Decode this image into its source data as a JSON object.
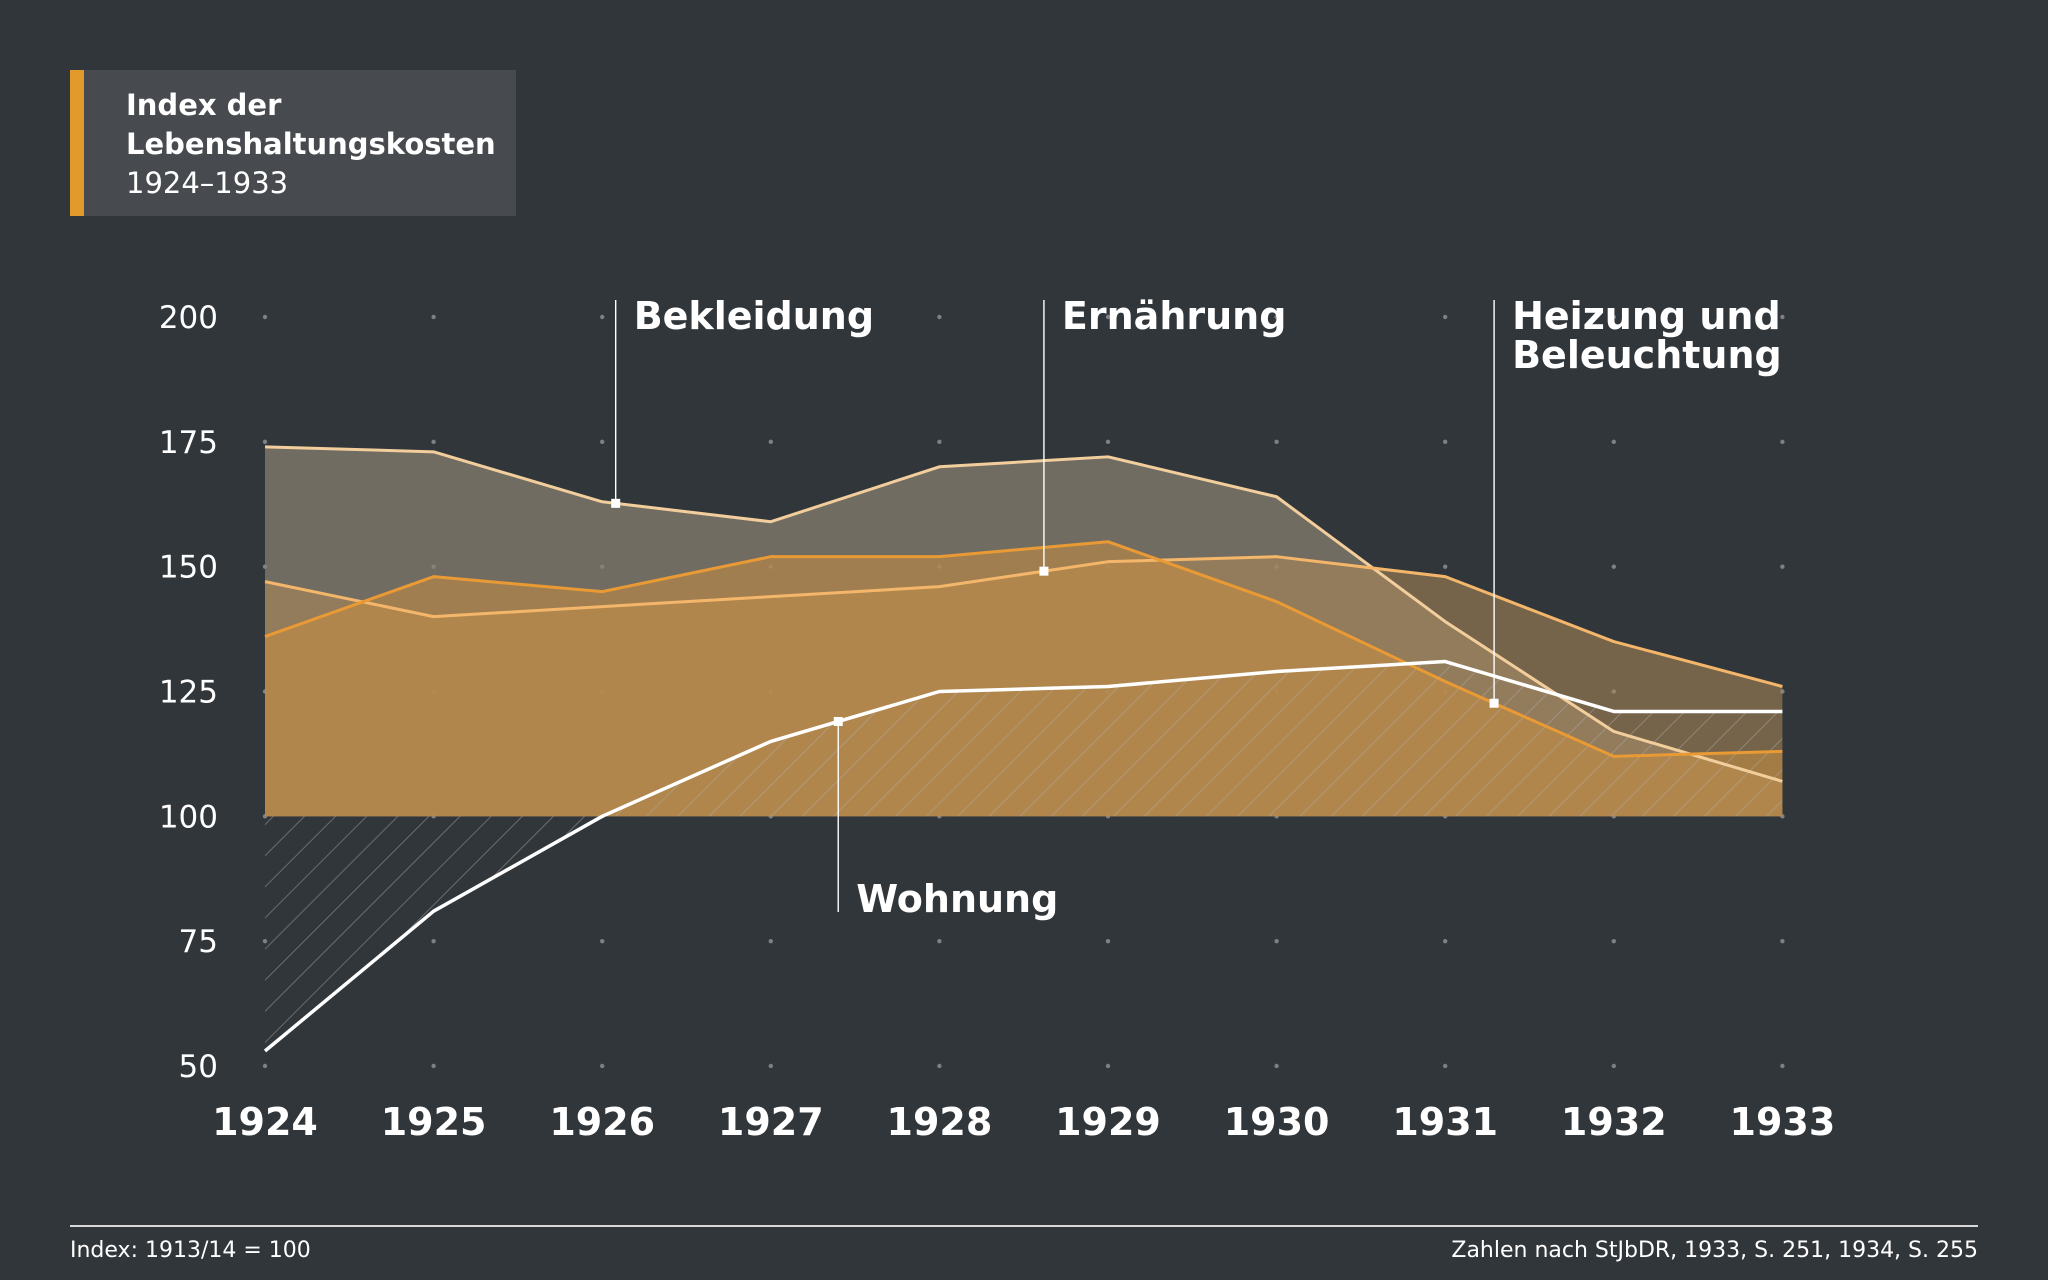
{
  "title": {
    "line1": "Index der",
    "line2": "Lebenshaltungskosten",
    "line3": "1924–1933"
  },
  "footer": {
    "left": "Index: 1913/14 = 100",
    "right": "Zahlen nach StJbDR, 1933, S. 251, 1934, S. 255"
  },
  "colors": {
    "background": "#31363a",
    "accent": "#e39a2c",
    "bekleidung": "#f2ce9d",
    "ernaehrung": "#f3b66a",
    "heizung": "#e99a35",
    "wohnung": "#ffffff"
  },
  "chart_data": {
    "type": "area",
    "x": [
      1924,
      1925,
      1926,
      1927,
      1928,
      1929,
      1930,
      1931,
      1932,
      1933
    ],
    "ylim": [
      50,
      200
    ],
    "yticks": [
      50,
      75,
      100,
      125,
      150,
      175,
      200
    ],
    "baseline": 100,
    "grid": "dots",
    "series": [
      {
        "name": "Bekleidung",
        "values": [
          174,
          173,
          163,
          159,
          170,
          172,
          164,
          139,
          117,
          107
        ]
      },
      {
        "name": "Ernährung",
        "values": [
          147,
          140,
          142,
          144,
          146,
          151,
          152,
          148,
          135,
          126
        ]
      },
      {
        "name": "Heizung und Beleuchtung",
        "values": [
          136,
          148,
          145,
          152,
          152,
          155,
          143,
          127,
          112,
          113
        ]
      },
      {
        "name": "Wohnung",
        "values": [
          53,
          81,
          100,
          115,
          125,
          126,
          129,
          131,
          121,
          121
        ]
      }
    ],
    "labels": [
      {
        "series": "Bekleidung",
        "lines": [
          "Bekleidung"
        ],
        "at_x": 1926.08
      },
      {
        "series": "Ernährung",
        "lines": [
          "Ernährung"
        ],
        "at_x": 1928.62
      },
      {
        "series": "Heizung und Beleuchtung",
        "lines": [
          "Heizung und",
          "Beleuchtung"
        ],
        "at_x": 1931.29
      },
      {
        "series": "Wohnung",
        "lines": [
          "Wohnung"
        ],
        "at_x": 1927.4
      }
    ]
  }
}
